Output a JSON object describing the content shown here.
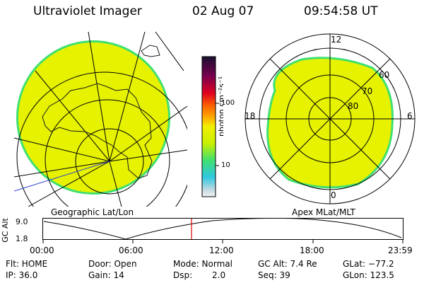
{
  "header": {
    "instrument": "Ultraviolet Imager",
    "date": "02 Aug 07",
    "time": "09:54:58 UT"
  },
  "colorbar": {
    "unit_label": "photon cm⁻²s⁻¹",
    "tick_labels": [
      "100",
      "10"
    ]
  },
  "panels": {
    "geographic_label": "Geographic Lat/Lon",
    "apex_label": "Apex MLat/MLT",
    "polar_hour_labels": [
      "12",
      "18",
      "6",
      "0"
    ],
    "polar_lat_labels": [
      "60",
      "70",
      "80"
    ]
  },
  "orbit": {
    "ylabel": "GC Alt",
    "y_ticks": [
      "9.0",
      "1.8"
    ],
    "x_ticks": [
      "00:00",
      "06:00",
      "12:00",
      "18:00",
      "23:59"
    ],
    "marker_time": "09:54:58"
  },
  "status": {
    "flt": "Flt: HOME",
    "ip": "IP: 36.0",
    "door": "Door: Open",
    "gain": "Gain: 14",
    "mode": "Mode: Normal",
    "dsp_label": "Dsp:",
    "dsp_value": "2.0",
    "gc_alt": "GC Alt: 7.4 Re",
    "seq": "Seq: 39",
    "glat": "GLat: −77.2",
    "glon": "GLon: 123.5"
  },
  "colors": {
    "aurora_fill": "#e6f200",
    "aurora_edge": "#40e070",
    "marker": "#e00000"
  }
}
